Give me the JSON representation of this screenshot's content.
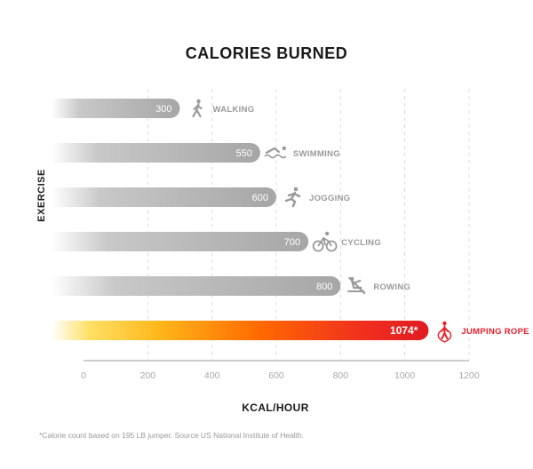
{
  "chart_data": {
    "type": "bar",
    "orientation": "horizontal",
    "title": "CALORIES BURNED",
    "xlabel": "KCAL/HOUR",
    "ylabel": "EXERCISE",
    "xlim": [
      0,
      1200
    ],
    "xticks": [
      0,
      200,
      400,
      600,
      800,
      1000,
      1200
    ],
    "grid": true,
    "categories": [
      "WALKING",
      "SWIMMING",
      "JOGGING",
      "CYCLING",
      "ROWING",
      "JUMPING ROPE"
    ],
    "values": [
      300,
      550,
      600,
      700,
      800,
      1074
    ],
    "value_labels": [
      "300",
      "550",
      "600",
      "700",
      "800",
      "1074*"
    ],
    "icons": [
      "walking-icon",
      "swimming-icon",
      "jogging-icon",
      "cycling-icon",
      "rowing-icon",
      "jump-rope-icon"
    ],
    "highlight": "JUMPING ROPE",
    "colors": {
      "bar_gray": "#a9a9a9",
      "highlight_start": "#ffd23a",
      "highlight_mid": "#ff7a00",
      "highlight_end": "#e8202a",
      "label_gray": "#9a9a9a",
      "axis": "#bdbdbd"
    },
    "footnote": "*Calorie count based on 195 LB jumper. Source US National Institute of Health."
  }
}
